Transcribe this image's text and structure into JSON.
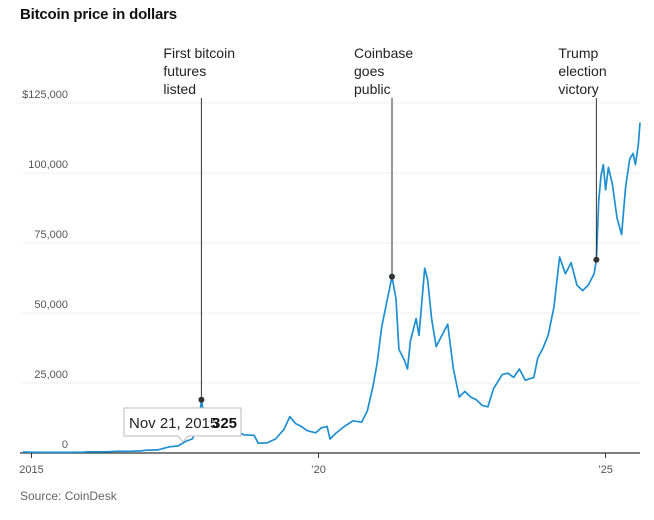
{
  "chart_data": {
    "type": "line",
    "title": "Bitcoin price in dollars",
    "source": "Source: CoinDesk",
    "xlabel": "",
    "ylabel": "",
    "xlim": [
      2014.8,
      2025.6
    ],
    "ylim": [
      0,
      125000
    ],
    "grid": true,
    "y_ticks": [
      {
        "value": 0,
        "label": "0"
      },
      {
        "value": 25000,
        "label": "25,000"
      },
      {
        "value": 50000,
        "label": "50,000"
      },
      {
        "value": 75000,
        "label": "75,000"
      },
      {
        "value": 100000,
        "label": "100,000"
      },
      {
        "value": 125000,
        "label": "$125,000"
      }
    ],
    "x_ticks": [
      {
        "value": 2015.0,
        "label": "2015"
      },
      {
        "value": 2020.0,
        "label": "’20"
      },
      {
        "value": 2025.0,
        "label": "’25"
      }
    ],
    "series": [
      {
        "color": "#1e8fd0",
        "points": [
          [
            2014.85,
            350
          ],
          [
            2015.0,
            300
          ],
          [
            2015.3,
            240
          ],
          [
            2015.6,
            260
          ],
          [
            2015.9,
            330
          ],
          [
            2016.0,
            420
          ],
          [
            2016.3,
            430
          ],
          [
            2016.5,
            650
          ],
          [
            2016.7,
            610
          ],
          [
            2016.9,
            750
          ],
          [
            2017.0,
            1000
          ],
          [
            2017.2,
            1100
          ],
          [
            2017.4,
            2200
          ],
          [
            2017.55,
            2500
          ],
          [
            2017.7,
            4300
          ],
          [
            2017.8,
            5000
          ],
          [
            2017.88,
            8000
          ],
          [
            2017.92,
            11000
          ],
          [
            2017.96,
            19000
          ],
          [
            2018.0,
            14000
          ],
          [
            2018.05,
            11000
          ],
          [
            2018.1,
            8000
          ],
          [
            2018.2,
            10000
          ],
          [
            2018.3,
            7000
          ],
          [
            2018.4,
            9000
          ],
          [
            2018.5,
            6500
          ],
          [
            2018.6,
            7500
          ],
          [
            2018.7,
            6500
          ],
          [
            2018.88,
            6300
          ],
          [
            2018.95,
            3500
          ],
          [
            2019.1,
            3600
          ],
          [
            2019.25,
            5000
          ],
          [
            2019.4,
            8500
          ],
          [
            2019.5,
            13000
          ],
          [
            2019.6,
            10500
          ],
          [
            2019.7,
            9500
          ],
          [
            2019.8,
            8000
          ],
          [
            2019.95,
            7200
          ],
          [
            2020.05,
            9000
          ],
          [
            2020.15,
            9500
          ],
          [
            2020.2,
            5000
          ],
          [
            2020.3,
            7000
          ],
          [
            2020.45,
            9500
          ],
          [
            2020.6,
            11500
          ],
          [
            2020.75,
            11000
          ],
          [
            2020.85,
            15000
          ],
          [
            2020.95,
            24000
          ],
          [
            2021.02,
            32000
          ],
          [
            2021.1,
            45000
          ],
          [
            2021.2,
            55000
          ],
          [
            2021.28,
            63000
          ],
          [
            2021.35,
            55000
          ],
          [
            2021.4,
            37000
          ],
          [
            2021.5,
            33000
          ],
          [
            2021.55,
            30000
          ],
          [
            2021.6,
            40000
          ],
          [
            2021.7,
            48000
          ],
          [
            2021.75,
            42000
          ],
          [
            2021.85,
            66000
          ],
          [
            2021.9,
            62000
          ],
          [
            2021.97,
            48000
          ],
          [
            2022.05,
            38000
          ],
          [
            2022.15,
            42000
          ],
          [
            2022.25,
            46000
          ],
          [
            2022.35,
            30000
          ],
          [
            2022.45,
            20000
          ],
          [
            2022.55,
            22000
          ],
          [
            2022.65,
            20000
          ],
          [
            2022.75,
            19000
          ],
          [
            2022.85,
            17000
          ],
          [
            2022.95,
            16500
          ],
          [
            2023.05,
            23000
          ],
          [
            2023.2,
            28000
          ],
          [
            2023.3,
            28500
          ],
          [
            2023.4,
            27000
          ],
          [
            2023.5,
            30000
          ],
          [
            2023.6,
            26000
          ],
          [
            2023.75,
            27000
          ],
          [
            2023.82,
            34000
          ],
          [
            2023.9,
            37000
          ],
          [
            2024.0,
            42000
          ],
          [
            2024.1,
            52000
          ],
          [
            2024.2,
            70000
          ],
          [
            2024.3,
            64000
          ],
          [
            2024.4,
            68000
          ],
          [
            2024.5,
            60000
          ],
          [
            2024.6,
            58000
          ],
          [
            2024.7,
            60000
          ],
          [
            2024.8,
            64000
          ],
          [
            2024.84,
            69000
          ],
          [
            2024.88,
            90000
          ],
          [
            2024.92,
            99000
          ],
          [
            2024.96,
            103000
          ],
          [
            2025.0,
            94000
          ],
          [
            2025.05,
            102000
          ],
          [
            2025.12,
            96000
          ],
          [
            2025.2,
            84000
          ],
          [
            2025.28,
            78000
          ],
          [
            2025.35,
            95000
          ],
          [
            2025.42,
            105000
          ],
          [
            2025.48,
            107000
          ],
          [
            2025.52,
            103000
          ],
          [
            2025.57,
            110000
          ],
          [
            2025.6,
            118000
          ]
        ]
      }
    ],
    "annotations": [
      {
        "lines": [
          "First bitcoin",
          "futures",
          "listed"
        ],
        "x": 2017.96,
        "y": 19000
      },
      {
        "lines": [
          "Coinbase",
          "goes",
          "public"
        ],
        "x": 2021.28,
        "y": 63000
      },
      {
        "lines": [
          "Trump",
          "election",
          "victory"
        ],
        "x": 2024.84,
        "y": 69000
      }
    ],
    "tooltip": {
      "date": "Nov 21, 2015",
      "value": "325",
      "x": 2015.89,
      "y": 325
    }
  }
}
